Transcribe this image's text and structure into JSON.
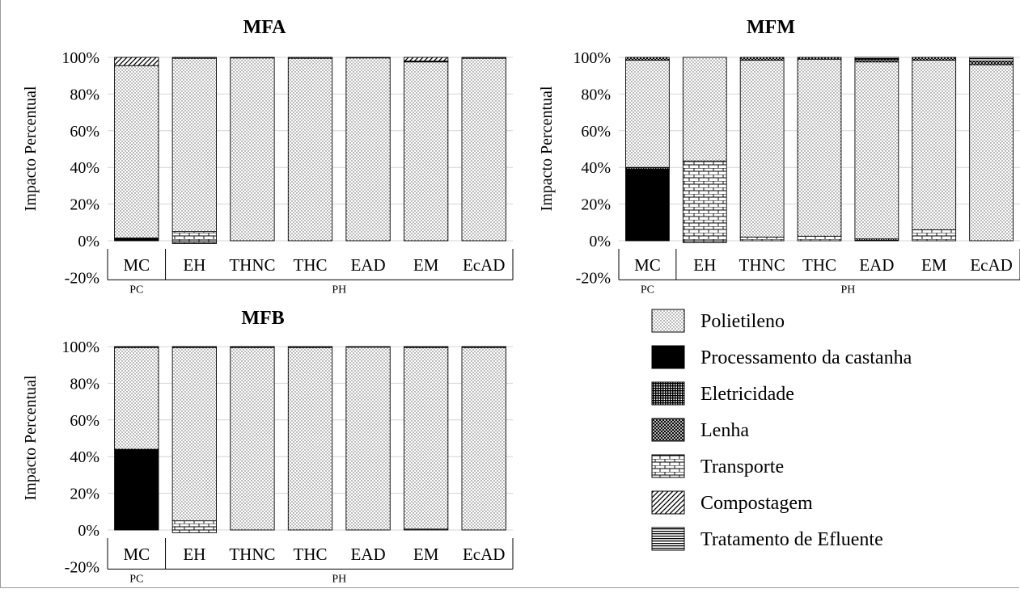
{
  "chart_data": [
    {
      "type": "bar",
      "stacked": true,
      "title": "MFA",
      "ylabel": "Impacto Percentual",
      "ylim": [
        -20,
        100
      ],
      "yticks": [
        "100%",
        "80%",
        "60%",
        "40%",
        "20%",
        "0%",
        "-20%"
      ],
      "yticks_values": [
        100,
        80,
        60,
        40,
        20,
        0,
        -20
      ],
      "categories": [
        "MC",
        "EH",
        "THNC",
        "THC",
        "EAD",
        "EM",
        "EcAD"
      ],
      "groups": [
        {
          "label": "PC",
          "span": [
            0,
            0
          ]
        },
        {
          "label": "PH",
          "span": [
            1,
            6
          ]
        }
      ],
      "grid": true,
      "series": [
        {
          "name": "Processamento da castanha",
          "values": [
            1.5,
            0,
            0,
            0,
            0,
            0,
            0
          ]
        },
        {
          "name": "Transporte",
          "values": [
            0,
            5,
            0,
            0,
            0,
            0,
            0
          ]
        },
        {
          "name": "Polietileno",
          "values": [
            94,
            94.5,
            99.8,
            99.5,
            99.8,
            97.5,
            99.5
          ]
        },
        {
          "name": "Eletricidade",
          "values": [
            0,
            0.5,
            0.2,
            0.5,
            0.2,
            0.5,
            0.5
          ]
        },
        {
          "name": "Compostagem",
          "values": [
            4.5,
            0,
            0,
            0,
            0,
            2,
            0
          ]
        }
      ],
      "negative": [
        {
          "name": "Transporte",
          "values": [
            0,
            -1.5,
            0,
            0,
            0,
            0,
            0
          ]
        }
      ]
    },
    {
      "type": "bar",
      "stacked": true,
      "title": "MFM",
      "ylabel": "Impacto Percentual",
      "ylim": [
        -20,
        100
      ],
      "yticks": [
        "100%",
        "80%",
        "60%",
        "40%",
        "20%",
        "0%",
        "-20%"
      ],
      "yticks_values": [
        100,
        80,
        60,
        40,
        20,
        0,
        -20
      ],
      "categories": [
        "MC",
        "EH",
        "THNC",
        "THC",
        "EAD",
        "EM",
        "EcAD"
      ],
      "groups": [
        {
          "label": "PC",
          "span": [
            0,
            0
          ]
        },
        {
          "label": "PH",
          "span": [
            1,
            6
          ]
        }
      ],
      "grid": true,
      "series": [
        {
          "name": "Processamento da castanha",
          "values": [
            39,
            0,
            0,
            0,
            0,
            0,
            0
          ]
        },
        {
          "name": "Eletricidade",
          "values": [
            1,
            0,
            0,
            0,
            1,
            0,
            0
          ]
        },
        {
          "name": "Transporte",
          "values": [
            0,
            43.5,
            2,
            2.5,
            0,
            6,
            0
          ]
        },
        {
          "name": "Polietileno",
          "values": [
            58.5,
            56.5,
            96.5,
            96.5,
            96.5,
            92.5,
            96
          ]
        },
        {
          "name": "Lenha",
          "values": [
            1.5,
            0,
            1.5,
            1,
            1.5,
            1.5,
            2
          ]
        },
        {
          "name": "Tratamento de Efluente",
          "values": [
            0,
            0,
            0,
            0,
            1,
            0,
            2
          ]
        }
      ],
      "negative": [
        {
          "name": "Transporte",
          "values": [
            0,
            -1,
            0,
            0,
            0,
            0,
            0
          ]
        }
      ]
    },
    {
      "type": "bar",
      "stacked": true,
      "title": "MFB",
      "ylabel": "Impacto Percentual",
      "ylim": [
        -20,
        100
      ],
      "yticks": [
        "100%",
        "80%",
        "60%",
        "40%",
        "20%",
        "0%",
        "-20%"
      ],
      "yticks_values": [
        100,
        80,
        60,
        40,
        20,
        0,
        -20
      ],
      "categories": [
        "MC",
        "EH",
        "THNC",
        "THC",
        "EAD",
        "EM",
        "EcAD"
      ],
      "groups": [
        {
          "label": "PC",
          "span": [
            0,
            0
          ]
        },
        {
          "label": "PH",
          "span": [
            1,
            6
          ]
        }
      ],
      "grid": true,
      "series": [
        {
          "name": "Processamento da castanha",
          "values": [
            44,
            0,
            0,
            0,
            0,
            0,
            0
          ]
        },
        {
          "name": "Transporte",
          "values": [
            0,
            5,
            0,
            0,
            0,
            0.5,
            0
          ]
        },
        {
          "name": "Polietileno",
          "values": [
            55.5,
            94.5,
            99.5,
            99.5,
            99.8,
            99,
            99.5
          ]
        },
        {
          "name": "Eletricidade",
          "values": [
            0.5,
            0.5,
            0.5,
            0.5,
            0.2,
            0.5,
            0.5
          ]
        }
      ],
      "negative": [
        {
          "name": "Transporte",
          "values": [
            0,
            -1.5,
            0,
            0,
            0,
            0,
            0
          ]
        }
      ]
    }
  ],
  "legend": {
    "placement": "bottom-right",
    "items": [
      {
        "name": "Polietileno",
        "pattern": "dots"
      },
      {
        "name": "Processamento da castanha",
        "pattern": "solid"
      },
      {
        "name": "Eletricidade",
        "pattern": "dense-grid"
      },
      {
        "name": "Lenha",
        "pattern": "crosshatch"
      },
      {
        "name": "Transporte",
        "pattern": "bricks"
      },
      {
        "name": "Compostagem",
        "pattern": "diagonal"
      },
      {
        "name": "Tratamento de Efluente",
        "pattern": "horizontal"
      }
    ]
  }
}
